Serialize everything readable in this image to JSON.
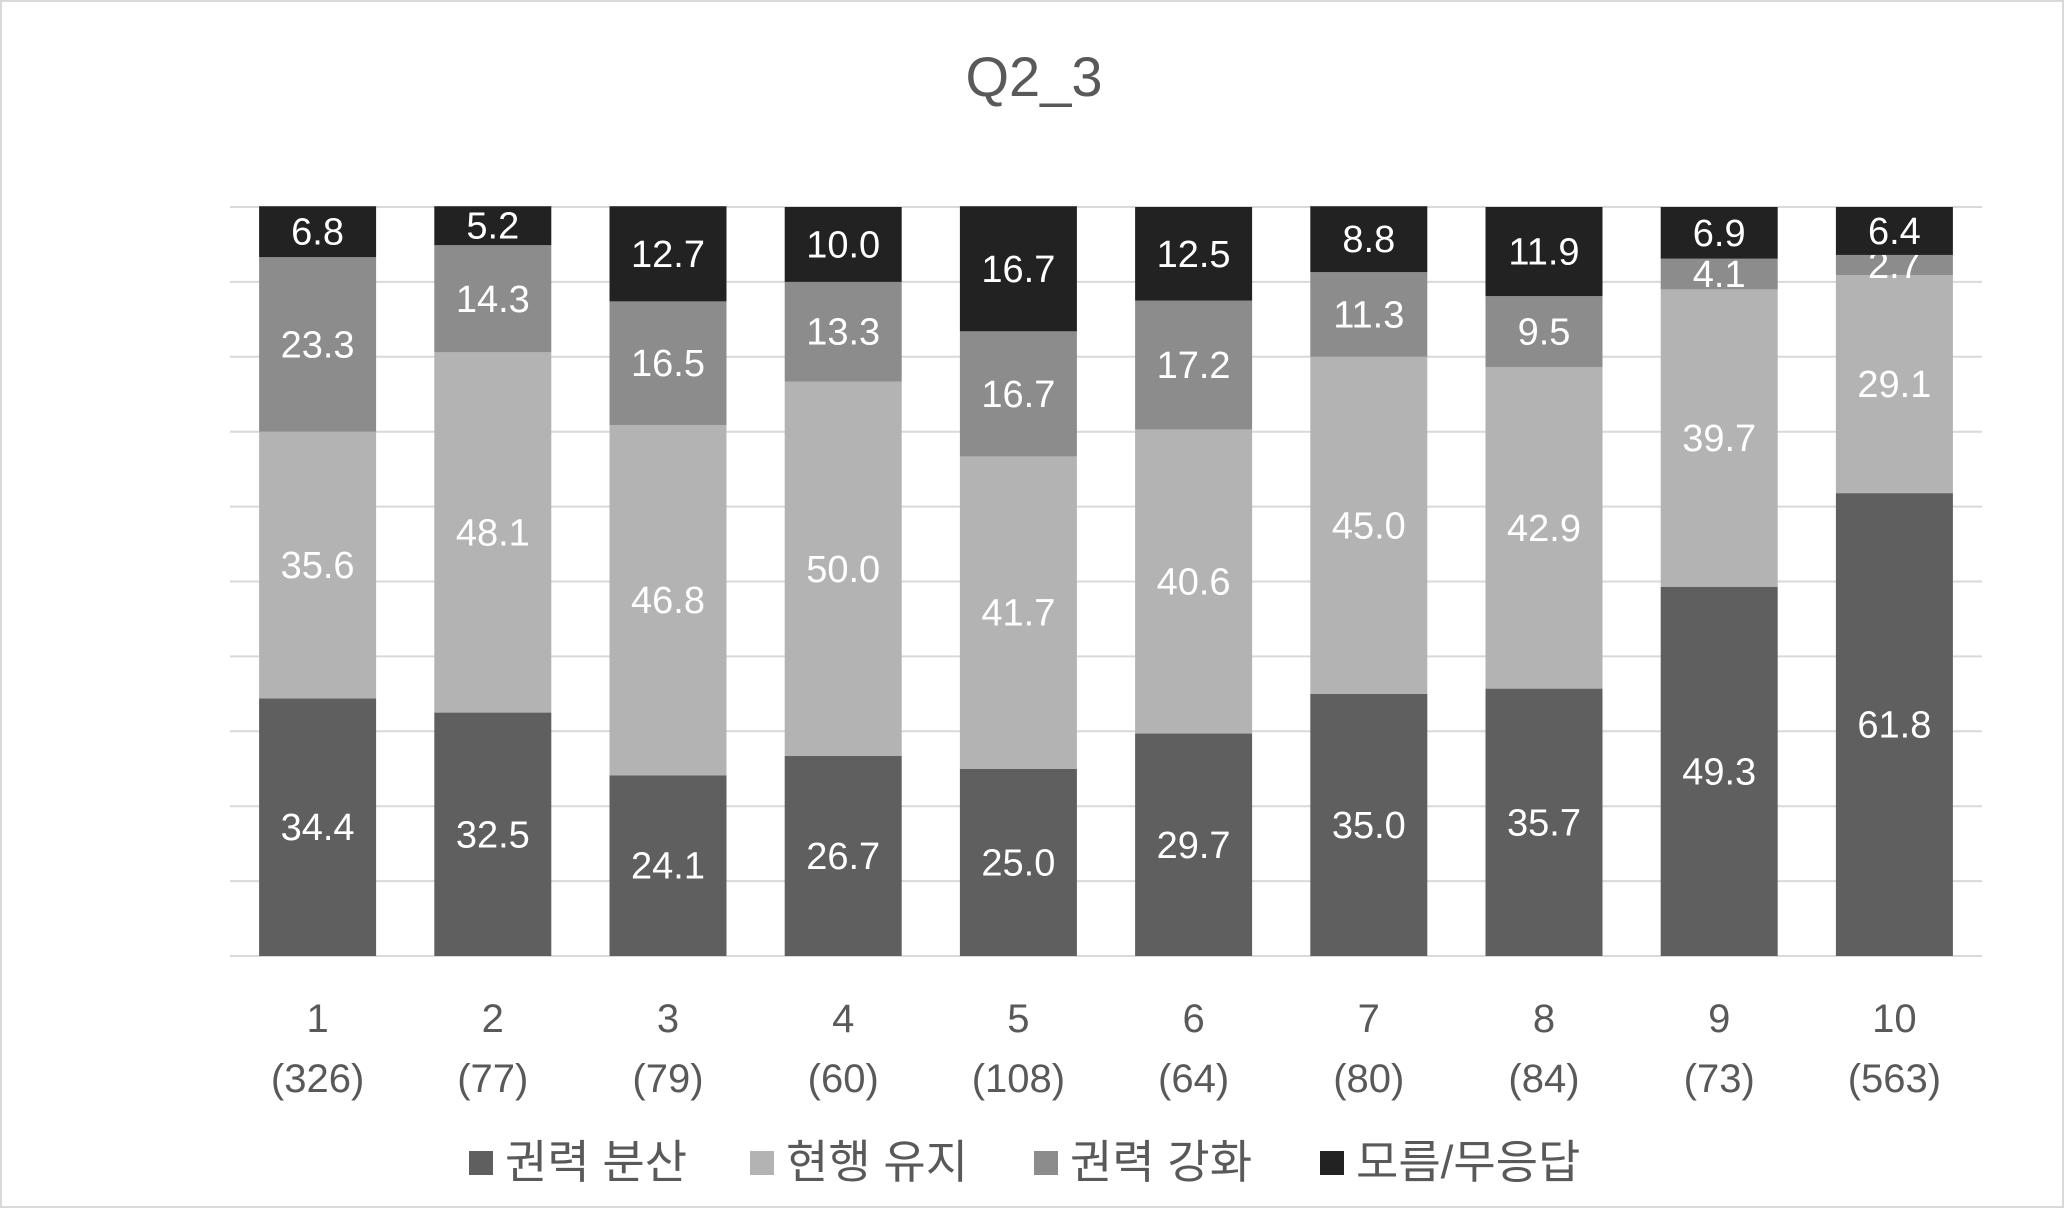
{
  "chart_data": {
    "type": "bar",
    "stacked": true,
    "title": "Q2_3",
    "xlabel": "",
    "ylabel": "",
    "ylim": [
      0,
      100
    ],
    "grid": true,
    "legend_position": "bottom",
    "categories": [
      "1",
      "2",
      "3",
      "4",
      "5",
      "6",
      "7",
      "8",
      "9",
      "10"
    ],
    "category_counts": [
      "(326)",
      "(77)",
      "(79)",
      "(60)",
      "(108)",
      "(64)",
      "(80)",
      "(84)",
      "(73)",
      "(563)"
    ],
    "series": [
      {
        "name": "권력 분산",
        "color": "#5f5f5f",
        "values": [
          34.4,
          32.5,
          24.1,
          26.7,
          25.0,
          29.7,
          35.0,
          35.7,
          49.3,
          61.8
        ]
      },
      {
        "name": "현행 유지",
        "color": "#b3b3b3",
        "values": [
          35.6,
          48.1,
          46.8,
          50.0,
          41.7,
          40.6,
          45.0,
          42.9,
          39.7,
          29.1
        ]
      },
      {
        "name": "권력 강화",
        "color": "#8c8c8c",
        "values": [
          23.3,
          14.3,
          16.5,
          13.3,
          16.7,
          17.2,
          11.3,
          9.5,
          4.1,
          2.7
        ]
      },
      {
        "name": "모름/무응답",
        "color": "#222222",
        "values": [
          6.8,
          5.2,
          12.7,
          10.0,
          16.7,
          12.5,
          8.8,
          11.9,
          6.9,
          6.4
        ]
      }
    ]
  }
}
